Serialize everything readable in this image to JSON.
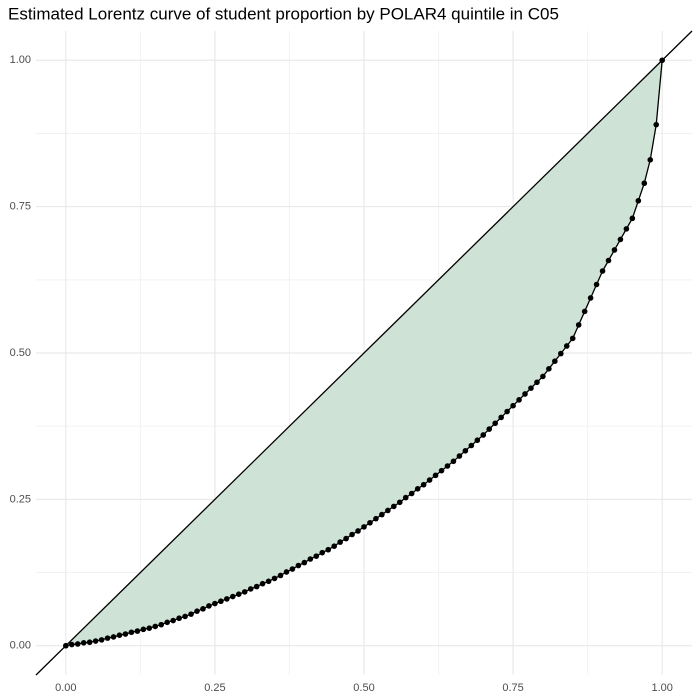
{
  "chart_data": {
    "type": "lorentz",
    "title": "Estimated Lorentz curve of student proportion by POLAR4 quintile in C05",
    "x": [
      0,
      0.01,
      0.02,
      0.03,
      0.04,
      0.05,
      0.06,
      0.07,
      0.08,
      0.09,
      0.1,
      0.11,
      0.12,
      0.13,
      0.14,
      0.15,
      0.16,
      0.17,
      0.18,
      0.19,
      0.2,
      0.21,
      0.22,
      0.23,
      0.24,
      0.25,
      0.26,
      0.27,
      0.28,
      0.29,
      0.3,
      0.31,
      0.32,
      0.33,
      0.34,
      0.35,
      0.36,
      0.37,
      0.38,
      0.39,
      0.4,
      0.41,
      0.42,
      0.43,
      0.44,
      0.45,
      0.46,
      0.47,
      0.48,
      0.49,
      0.5,
      0.51,
      0.52,
      0.53,
      0.54,
      0.55,
      0.56,
      0.57,
      0.58,
      0.59,
      0.6,
      0.61,
      0.62,
      0.63,
      0.64,
      0.65,
      0.66,
      0.67,
      0.68,
      0.69,
      0.7,
      0.71,
      0.72,
      0.73,
      0.74,
      0.75,
      0.76,
      0.77,
      0.78,
      0.79,
      0.8,
      0.81,
      0.82,
      0.83,
      0.84,
      0.85,
      0.86,
      0.87,
      0.88,
      0.89,
      0.9,
      0.91,
      0.92,
      0.93,
      0.94,
      0.95,
      0.96,
      0.97,
      0.98,
      0.99,
      1
    ],
    "values": [
      0,
      0.002,
      0.003,
      0.005,
      0.006,
      0.008,
      0.01,
      0.013,
      0.015,
      0.018,
      0.02,
      0.023,
      0.025,
      0.028,
      0.03,
      0.033,
      0.036,
      0.04,
      0.043,
      0.047,
      0.05,
      0.054,
      0.059,
      0.063,
      0.068,
      0.072,
      0.076,
      0.08,
      0.084,
      0.088,
      0.092,
      0.097,
      0.101,
      0.106,
      0.11,
      0.115,
      0.12,
      0.126,
      0.131,
      0.137,
      0.142,
      0.148,
      0.153,
      0.159,
      0.164,
      0.17,
      0.177,
      0.183,
      0.19,
      0.196,
      0.203,
      0.21,
      0.217,
      0.224,
      0.231,
      0.238,
      0.245,
      0.253,
      0.26,
      0.268,
      0.275,
      0.283,
      0.291,
      0.299,
      0.307,
      0.315,
      0.324,
      0.333,
      0.342,
      0.351,
      0.36,
      0.37,
      0.38,
      0.39,
      0.4,
      0.41,
      0.42,
      0.43,
      0.44,
      0.45,
      0.46,
      0.473,
      0.486,
      0.499,
      0.512,
      0.525,
      0.548,
      0.571,
      0.594,
      0.617,
      0.64,
      0.658,
      0.676,
      0.694,
      0.712,
      0.73,
      0.76,
      0.79,
      0.83,
      0.89,
      1
    ],
    "color": "#000000",
    "fill_color": "#cfe2d6",
    "xlim": [
      -0.05,
      1.05
    ],
    "ylim": [
      -0.05,
      1.05
    ],
    "xticks": [
      {
        "value": 0,
        "label": "0.00"
      },
      {
        "value": 0.25,
        "label": "0.25"
      },
      {
        "value": 0.5,
        "label": "0.50"
      },
      {
        "value": 0.75,
        "label": "0.75"
      },
      {
        "value": 1,
        "label": "1.00"
      }
    ],
    "yticks": [
      {
        "value": 0,
        "label": "0.00"
      },
      {
        "value": 0.25,
        "label": "0.25"
      },
      {
        "value": 0.5,
        "label": "0.50"
      },
      {
        "value": 0.75,
        "label": "0.75"
      },
      {
        "value": 1,
        "label": "1.00"
      }
    ],
    "grid": true
  }
}
